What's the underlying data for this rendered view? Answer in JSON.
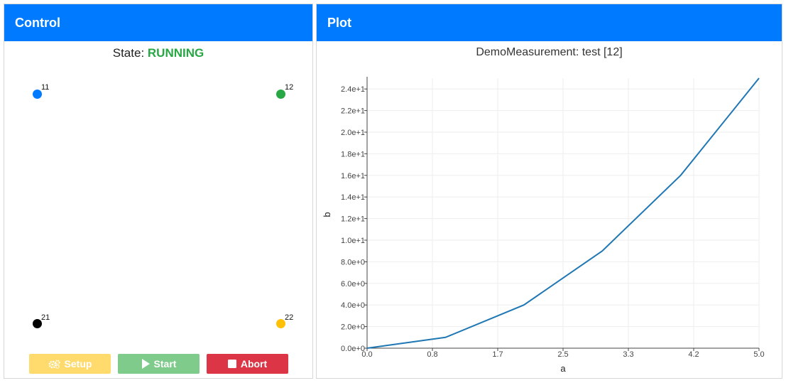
{
  "control": {
    "title": "Control",
    "state_label": "State:",
    "state_value": "RUNNING",
    "state_color": "#28a745",
    "markers": [
      {
        "label": "11",
        "color": "#007bff"
      },
      {
        "label": "12",
        "color": "#28a745"
      },
      {
        "label": "21",
        "color": "#000000"
      },
      {
        "label": "22",
        "color": "#ffc107"
      }
    ],
    "buttons": {
      "setup_label": "Setup",
      "setup_icon": "gears-icon",
      "start_label": "Start",
      "start_icon": "play-icon",
      "abort_label": "Abort",
      "abort_icon": "stop-icon"
    }
  },
  "plot": {
    "title": "Plot",
    "accent": "#007bff"
  },
  "chart_data": {
    "type": "line",
    "title": "DemoMeasurement: test [12]",
    "xlabel": "a",
    "ylabel": "b",
    "xlim": [
      0,
      5
    ],
    "ylim": [
      0,
      25
    ],
    "x_ticks": [
      "0.0",
      "0.8",
      "1.7",
      "2.5",
      "3.3",
      "4.2",
      "5.0"
    ],
    "y_ticks": [
      "0.0e+0",
      "2.0e+0",
      "4.0e+0",
      "6.0e+0",
      "8.0e+0",
      "1.0e+1",
      "1.2e+1",
      "1.4e+1",
      "1.6e+1",
      "1.8e+1",
      "2.0e+1",
      "2.2e+1",
      "2.4e+1"
    ],
    "grid": true,
    "series": [
      {
        "color": "#1f77b4",
        "x": [
          0,
          1,
          2,
          3,
          4,
          5
        ],
        "y": [
          0,
          1,
          4,
          9,
          16,
          25
        ]
      }
    ]
  }
}
